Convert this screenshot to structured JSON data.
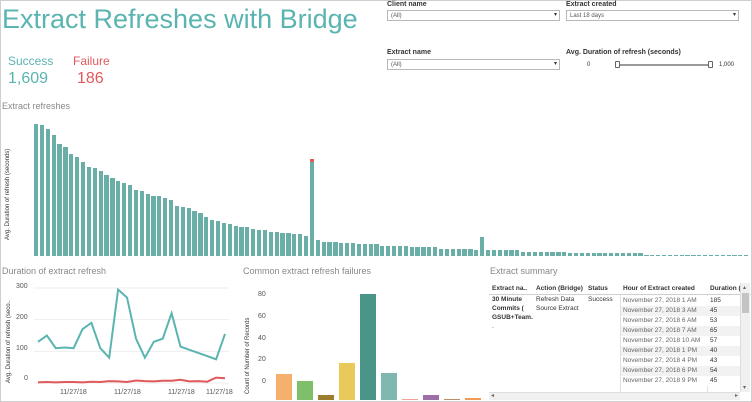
{
  "header": {
    "title": "Extract Refreshes with Bridge"
  },
  "kpi": {
    "success_label": "Success",
    "success_value": "1,609",
    "failure_label": "Failure",
    "failure_value": "186"
  },
  "filters": {
    "client_name": {
      "label": "Client name",
      "value": "(All)"
    },
    "extract_created": {
      "label": "Extract created",
      "value": "Last 18 days"
    },
    "extract_name": {
      "label": "Extract name",
      "value": "(All)"
    },
    "avg_duration": {
      "label": "Avg. Duration of refresh (seconds)",
      "min": "0",
      "max": "1,000",
      "low_value": 0.05
    }
  },
  "colors": {
    "teal": "#5ab4b0",
    "red": "#e0595c",
    "bar": "#6aaea8"
  },
  "extract_refreshes": {
    "title": "Extract refreshes",
    "ylabel": "Avg. Duration of refresh (seconds)"
  },
  "chart_data": [
    {
      "type": "bar",
      "title": "Extract refreshes",
      "ylabel": "Avg. Duration of refresh (seconds)",
      "values": [
        92,
        91,
        88,
        84,
        78,
        76,
        71,
        69,
        65,
        62,
        61,
        59,
        56,
        54,
        52,
        51,
        49,
        46,
        45,
        43,
        42,
        42,
        40,
        39,
        35,
        34,
        33,
        31,
        30,
        27,
        25,
        24,
        23,
        22,
        21,
        20,
        20,
        19,
        18,
        18,
        17,
        17,
        16,
        16,
        15,
        15,
        14,
        65,
        11,
        10,
        10,
        10,
        9,
        9,
        9,
        8,
        8,
        8,
        8,
        7,
        7,
        7,
        7,
        7,
        6,
        6,
        6,
        6,
        6,
        5,
        5,
        5,
        5,
        5,
        5,
        4,
        13,
        4,
        4,
        4,
        4,
        4,
        4,
        3,
        3,
        3,
        3,
        3,
        3,
        3,
        3,
        2,
        2,
        2,
        2,
        2,
        2,
        2,
        2,
        2,
        2,
        2,
        2,
        2,
        1,
        1,
        1,
        1,
        1,
        1,
        1,
        1,
        1,
        1,
        1,
        1,
        1,
        1,
        1,
        1,
        1,
        1
      ],
      "failure_cap_index": 47,
      "ylim": [
        0,
        100
      ]
    },
    {
      "type": "line",
      "title": "Duration of extract refresh",
      "ylabel": "Avg. Duration of refresh (seco..",
      "yticks": [
        "300",
        "200",
        "100",
        "0"
      ],
      "ylim": [
        0,
        300
      ],
      "xticks": [
        "11/27/18",
        "11/27/18",
        "11/27/18",
        "11/27/18"
      ],
      "series": [
        {
          "color": "#5ab4b0",
          "values": [
            130,
            150,
            110,
            112,
            110,
            170,
            190,
            110,
            80,
            295,
            270,
            140,
            80,
            130,
            140,
            220,
            115,
            105,
            95,
            85,
            75,
            155
          ]
        },
        {
          "color": "#e0595c",
          "values": [
            2,
            3,
            2,
            3,
            3,
            2,
            4,
            3,
            6,
            5,
            3,
            8,
            6,
            5,
            7,
            7,
            10,
            5,
            6,
            4,
            17,
            15
          ]
        }
      ]
    },
    {
      "type": "bar",
      "title": "Common extract refresh failures",
      "ylabel": "Count of Number of Records",
      "yticks": [
        "80",
        "60",
        "40",
        "20",
        "0"
      ],
      "ylim": [
        0,
        90
      ],
      "bars": [
        {
          "value": 21,
          "color": "#f5b06e"
        },
        {
          "value": 15,
          "color": "#7dbf6b"
        },
        {
          "value": 4,
          "color": "#9d7c2b"
        },
        {
          "value": 30,
          "color": "#e8c95a"
        },
        {
          "value": 86,
          "color": "#4a9488"
        },
        {
          "value": 22,
          "color": "#7fb8b0"
        },
        {
          "value": 1,
          "color": "#f4a09c"
        },
        {
          "value": 4,
          "color": "#9c6fa8"
        },
        {
          "value": 1,
          "color": "#b88f6a"
        },
        {
          "value": 2,
          "color": "#f29a58"
        }
      ]
    }
  ],
  "summary": {
    "title": "Extract summary",
    "headers": [
      "Extract na..",
      "Action (Bridge)",
      "Status",
      "Hour of Extract created",
      "Duration ("
    ],
    "extract_name_lines": [
      "30 Minute",
      "Commits (",
      "GSUB+Team.",
      "."
    ],
    "actions": [
      "Refresh Data",
      "Source Extract"
    ],
    "status": "Success",
    "rows": [
      {
        "hour": "November 27, 2018 1 AM",
        "duration": "185"
      },
      {
        "hour": "November 27, 2018 3 AM",
        "duration": "45"
      },
      {
        "hour": "November 27, 2018 6 AM",
        "duration": "53"
      },
      {
        "hour": "November 27, 2018 7 AM",
        "duration": "65"
      },
      {
        "hour": "November 27, 2018 10 AM",
        "duration": "57"
      },
      {
        "hour": "November 27, 2018 1 PM",
        "duration": "40"
      },
      {
        "hour": "November 27, 2018 4 PM",
        "duration": "43"
      },
      {
        "hour": "November 27, 2018 6 PM",
        "duration": "54"
      },
      {
        "hour": "November 27, 2018 9 PM",
        "duration": "45"
      }
    ]
  }
}
